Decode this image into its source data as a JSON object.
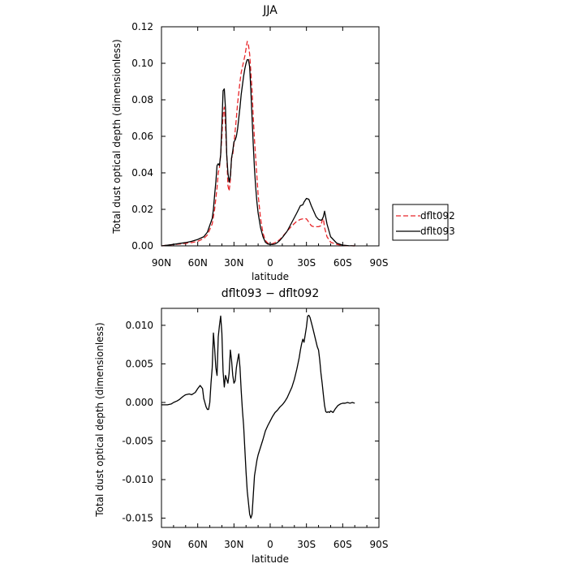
{
  "chart_data": [
    {
      "type": "line",
      "title": "JJA",
      "xlabel": "latitude",
      "ylabel": "Total dust optical depth (dimensionless)",
      "xlim": [
        90,
        -90
      ],
      "ylim": [
        0,
        0.12
      ],
      "x_ticks": [
        90,
        60,
        30,
        0,
        -30,
        -60,
        -90
      ],
      "x_tick_labels": [
        "90N",
        "60N",
        "30N",
        "0",
        "30S",
        "60S",
        "90S"
      ],
      "y_ticks": [
        0,
        0.02,
        0.04,
        0.06,
        0.08,
        0.1,
        0.12
      ],
      "y_tick_labels": [
        "0.00",
        "0.02",
        "0.04",
        "0.06",
        "0.08",
        "0.10",
        "0.12"
      ],
      "legend_position": "right",
      "series": [
        {
          "name": "dflt092",
          "color": "#e8262a",
          "dash": "dashed",
          "x": [
            90,
            85,
            80,
            75,
            70,
            65,
            60,
            55,
            52,
            48,
            46,
            44,
            43,
            42,
            41,
            40,
            39,
            38,
            37,
            36,
            35,
            34,
            33,
            32,
            31,
            30,
            29,
            28,
            27,
            26,
            25,
            24,
            23,
            22,
            21,
            20,
            19,
            18,
            17,
            16,
            15,
            14,
            13,
            12,
            11,
            10,
            8,
            6,
            4,
            2,
            0,
            -2,
            -4,
            -6,
            -8,
            -10,
            -14,
            -18,
            -22,
            -25,
            -28,
            -30,
            -32,
            -34,
            -36,
            -38,
            -40,
            -42,
            -43,
            -44,
            -45,
            -47,
            -50,
            -55,
            -60,
            -65,
            -70
          ],
          "y": [
            0.0,
            0.0004,
            0.0007,
            0.001,
            0.0014,
            0.0018,
            0.0025,
            0.004,
            0.006,
            0.012,
            0.02,
            0.032,
            0.04,
            0.043,
            0.05,
            0.06,
            0.072,
            0.076,
            0.065,
            0.05,
            0.033,
            0.03,
            0.036,
            0.048,
            0.05,
            0.056,
            0.063,
            0.07,
            0.078,
            0.084,
            0.09,
            0.095,
            0.098,
            0.101,
            0.104,
            0.108,
            0.112,
            0.11,
            0.105,
            0.095,
            0.085,
            0.07,
            0.058,
            0.048,
            0.038,
            0.028,
            0.015,
            0.007,
            0.003,
            0.0015,
            0.001,
            0.0012,
            0.0018,
            0.0025,
            0.0035,
            0.005,
            0.008,
            0.011,
            0.0135,
            0.0145,
            0.015,
            0.0148,
            0.013,
            0.011,
            0.0105,
            0.0105,
            0.0105,
            0.011,
            0.014,
            0.015,
            0.01,
            0.005,
            0.002,
            0.0008,
            0.0003,
            0.0001,
            0.0
          ]
        },
        {
          "name": "dflt093",
          "color": "#000000",
          "dash": "solid",
          "x": [
            90,
            85,
            80,
            75,
            70,
            65,
            60,
            55,
            52,
            48,
            47,
            46,
            45,
            44,
            43,
            42,
            41,
            40,
            39,
            38,
            37,
            36,
            35,
            34,
            33,
            32,
            31,
            30,
            29,
            28,
            27,
            26,
            25,
            24,
            23,
            22,
            21,
            20,
            19,
            18,
            17,
            16,
            15,
            14,
            13,
            12,
            11,
            10,
            8,
            6,
            4,
            2,
            0,
            -2,
            -4,
            -6,
            -8,
            -10,
            -14,
            -18,
            -22,
            -25,
            -27,
            -28,
            -30,
            -32,
            -34,
            -36,
            -38,
            -40,
            -42,
            -43,
            -44,
            -45,
            -47,
            -50,
            -55,
            -60,
            -65,
            -70
          ],
          "y": [
            0.0,
            0.0004,
            0.0008,
            0.0013,
            0.0018,
            0.0025,
            0.0035,
            0.005,
            0.0075,
            0.015,
            0.02,
            0.028,
            0.035,
            0.044,
            0.045,
            0.044,
            0.05,
            0.066,
            0.085,
            0.086,
            0.075,
            0.05,
            0.04,
            0.035,
            0.038,
            0.048,
            0.052,
            0.057,
            0.058,
            0.06,
            0.064,
            0.07,
            0.076,
            0.083,
            0.088,
            0.093,
            0.097,
            0.1,
            0.102,
            0.102,
            0.098,
            0.085,
            0.07,
            0.055,
            0.042,
            0.032,
            0.024,
            0.018,
            0.01,
            0.005,
            0.002,
            0.001,
            0.0008,
            0.0008,
            0.001,
            0.0018,
            0.003,
            0.0045,
            0.008,
            0.013,
            0.018,
            0.022,
            0.0225,
            0.024,
            0.026,
            0.0255,
            0.022,
            0.019,
            0.016,
            0.0145,
            0.014,
            0.0145,
            0.016,
            0.019,
            0.012,
            0.005,
            0.0015,
            0.0004,
            0.0001,
            0.0
          ]
        }
      ]
    },
    {
      "type": "line",
      "title": "dflt093 − dflt092",
      "xlabel": "latitude",
      "ylabel": "Total dust optical depth (dimensionless)",
      "xlim": [
        90,
        -90
      ],
      "ylim": [
        -0.0162,
        0.0122
      ],
      "x_ticks": [
        90,
        60,
        30,
        0,
        -30,
        -60,
        -90
      ],
      "x_tick_labels": [
        "90N",
        "60N",
        "30N",
        "0",
        "30S",
        "60S",
        "90S"
      ],
      "y_ticks": [
        -0.015,
        -0.01,
        -0.005,
        0,
        0.005,
        0.01
      ],
      "y_tick_labels": [
        "-0.015",
        "-0.010",
        "-0.005",
        "0.000",
        "0.005",
        "0.010"
      ],
      "series": [
        {
          "name": "",
          "color": "#000000",
          "dash": "solid",
          "x": [
            90,
            87,
            85,
            82,
            80,
            77,
            75,
            72,
            70,
            67,
            65,
            62,
            60,
            58,
            56,
            55,
            53,
            52,
            51,
            50,
            49,
            48,
            47,
            46,
            45,
            44,
            43,
            42,
            41,
            40,
            39,
            38,
            37,
            36,
            35,
            34,
            33,
            32,
            31,
            30,
            29,
            28,
            27,
            26,
            25,
            24,
            23,
            22,
            21,
            20,
            19,
            18,
            17,
            16,
            15,
            14,
            13,
            12,
            11,
            10,
            8,
            6,
            4,
            2,
            0,
            -2,
            -4,
            -6,
            -8,
            -10,
            -12,
            -14,
            -16,
            -18,
            -20,
            -22,
            -24,
            -25,
            -26,
            -27,
            -28,
            -29,
            -30,
            -31,
            -32,
            -33,
            -35,
            -37,
            -39,
            -40,
            -41,
            -42,
            -43,
            -44,
            -45,
            -46,
            -47,
            -48,
            -49,
            -50,
            -52,
            -54,
            -56,
            -58,
            -60,
            -62,
            -64,
            -66,
            -68,
            -70
          ],
          "y": [
            -0.0003,
            -0.0003,
            -0.0003,
            -0.0002,
            0.0,
            0.0002,
            0.0004,
            0.0008,
            0.001,
            0.0011,
            0.001,
            0.0013,
            0.0018,
            0.0022,
            0.0018,
            0.0005,
            -0.0006,
            -0.0009,
            -0.0009,
            0.0,
            0.0025,
            0.0045,
            0.009,
            0.007,
            0.0045,
            0.0035,
            0.0085,
            0.01,
            0.0112,
            0.009,
            0.004,
            0.002,
            0.0035,
            0.003,
            0.0025,
            0.0038,
            0.0068,
            0.0055,
            0.0035,
            0.0025,
            0.0028,
            0.0045,
            0.0055,
            0.0063,
            0.0045,
            0.0015,
            -0.001,
            -0.003,
            -0.006,
            -0.009,
            -0.0115,
            -0.013,
            -0.0145,
            -0.015,
            -0.0145,
            -0.012,
            -0.0095,
            -0.0085,
            -0.0075,
            -0.0068,
            -0.0058,
            -0.0048,
            -0.0037,
            -0.003,
            -0.0024,
            -0.0018,
            -0.0013,
            -0.001,
            -0.0006,
            -0.0003,
            0.0001,
            0.0006,
            0.0013,
            0.002,
            0.003,
            0.0043,
            0.0058,
            0.0068,
            0.0076,
            0.0082,
            0.0078,
            0.0088,
            0.0098,
            0.0112,
            0.0113,
            0.011,
            0.0098,
            0.0085,
            0.0072,
            0.0068,
            0.0055,
            0.0038,
            0.0025,
            0.001,
            -0.0004,
            -0.0012,
            -0.0013,
            -0.0012,
            -0.0013,
            -0.0011,
            -0.0013,
            -0.0008,
            -0.0004,
            -0.0002,
            -0.0001,
            -0.0001,
            0.0,
            -0.0001,
            0.0,
            -0.0001
          ]
        }
      ]
    }
  ]
}
